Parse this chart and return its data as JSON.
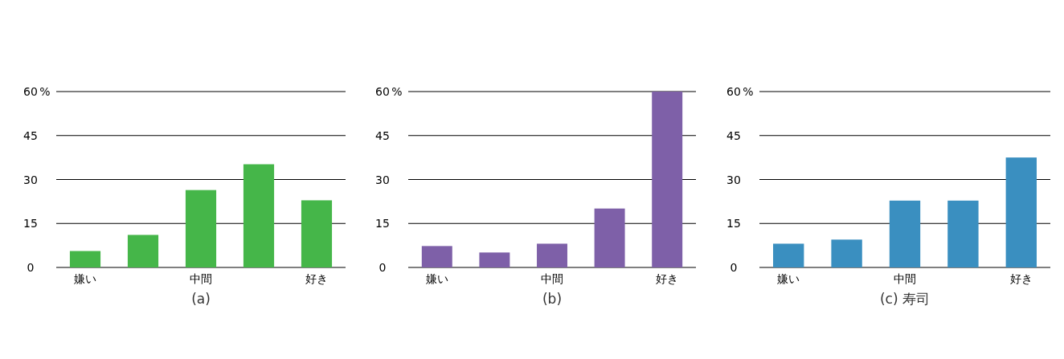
{
  "chart_data": [
    {
      "type": "bar",
      "xlabel": "(a)",
      "ylabel": "%",
      "categories": [
        "嫌い",
        null,
        "中間",
        null,
        "好き"
      ],
      "values": [
        5.6,
        11.1,
        26.4,
        35.2,
        22.9
      ],
      "color": "#45b649",
      "ylim": [
        0,
        60
      ],
      "yticks": [
        0,
        15,
        30,
        45,
        60
      ],
      "grid": "y"
    },
    {
      "type": "bar",
      "xlabel": "(b)",
      "ylabel": "%",
      "categories": [
        "嫌い",
        null,
        "中間",
        null,
        "好き"
      ],
      "values": [
        7.3,
        5.1,
        8.1,
        20.1,
        60
      ],
      "color": "#7e60a8",
      "ylim": [
        0,
        60
      ],
      "yticks": [
        0,
        15,
        30,
        45,
        60
      ],
      "grid": "y"
    },
    {
      "type": "bar",
      "xlabel": "(c) 寿司",
      "ylabel": "%",
      "categories": [
        "嫌い",
        null,
        "中間",
        null,
        "好き"
      ],
      "values": [
        8.1,
        9.5,
        22.8,
        22.8,
        37.5
      ],
      "color": "#3a8fc0",
      "ylim": [
        0,
        60
      ],
      "yticks": [
        0,
        15,
        30,
        45,
        60
      ],
      "grid": "y"
    }
  ]
}
